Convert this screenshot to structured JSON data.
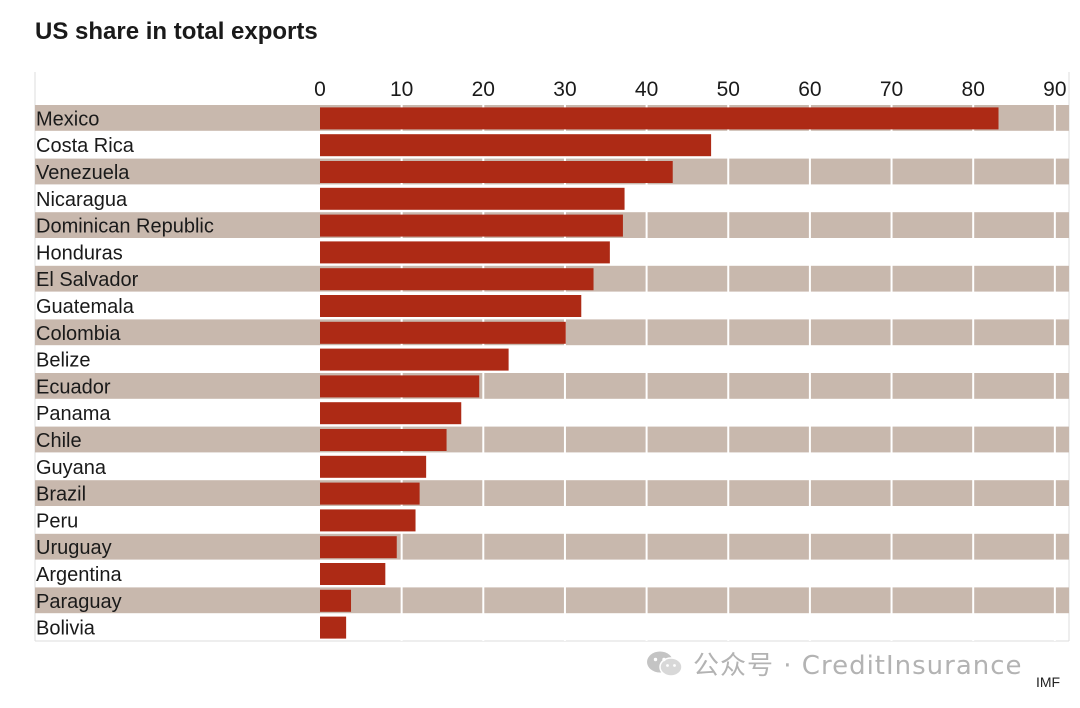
{
  "title": "US share in total exports",
  "watermark": "公众号 · CreditInsurance",
  "source": "IMF",
  "colors": {
    "bar": "#ad2a15",
    "band": "#c8b8ad",
    "grid": "#ffffff",
    "frame": "#dddddd"
  },
  "chart_data": {
    "type": "bar",
    "orientation": "horizontal",
    "title": "US share in total exports",
    "xlabel": "",
    "ylabel": "",
    "xlim": [
      0,
      92
    ],
    "ticks": [
      0,
      10,
      20,
      30,
      40,
      50,
      60,
      70,
      80,
      90
    ],
    "grid": true,
    "categories": [
      "Mexico",
      "Costa Rica",
      "Venezuela",
      "Nicaragua",
      "Dominican Republic",
      "Honduras",
      "El Salvador",
      "Guatemala",
      "Colombia",
      "Belize",
      "Ecuador",
      "Panama",
      "Chile",
      "Guyana",
      "Brazil",
      "Peru",
      "Uruguay",
      "Argentina",
      "Paraguay",
      "Bolivia"
    ],
    "values": [
      83.1,
      47.9,
      43.2,
      37.3,
      37.1,
      35.5,
      33.5,
      32.0,
      30.1,
      23.1,
      19.5,
      17.3,
      15.5,
      13.0,
      12.2,
      11.7,
      9.4,
      8.0,
      3.8,
      3.2
    ]
  }
}
